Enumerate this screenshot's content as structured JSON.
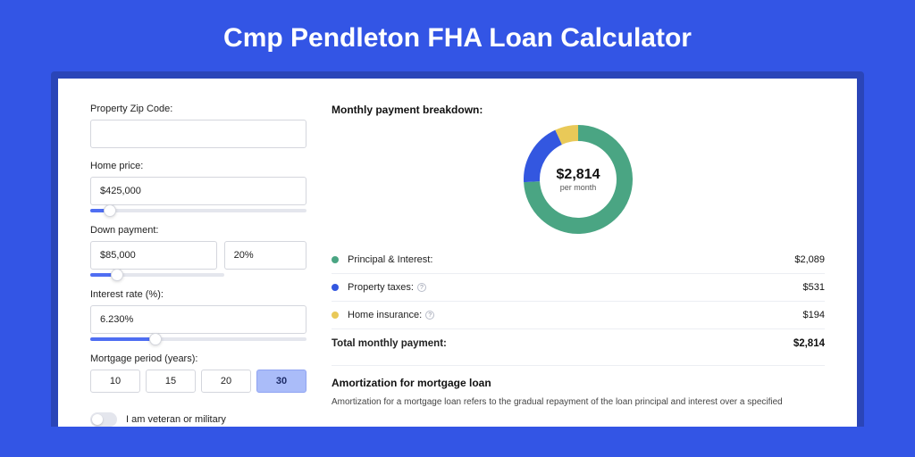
{
  "colors": {
    "page_bg": "#3355e5",
    "shadow": "#2a45b8",
    "card_bg": "#ffffff",
    "border": "#d4d6dd",
    "slider_fill": "#4f6ef2",
    "slider_track": "#e4e6ed",
    "period_active_bg": "#aabcf9",
    "text": "#222222"
  },
  "title": "Cmp Pendleton FHA Loan Calculator",
  "form": {
    "zip": {
      "label": "Property Zip Code:",
      "value": ""
    },
    "home_price": {
      "label": "Home price:",
      "value": "$425,000",
      "slider_pct": 9
    },
    "down_payment": {
      "label": "Down payment:",
      "value": "$85,000",
      "pct_value": "20%",
      "slider_pct": 20
    },
    "interest_rate": {
      "label": "Interest rate (%):",
      "value": "6.230%",
      "slider_pct": 30
    },
    "period": {
      "label": "Mortgage period (years):",
      "options": [
        "10",
        "15",
        "20",
        "30"
      ],
      "selected": "30"
    },
    "veteran": {
      "label": "I am veteran or military",
      "on": false
    }
  },
  "breakdown": {
    "title": "Monthly payment breakdown:",
    "center_amount": "$2,814",
    "center_sub": "per month",
    "donut": {
      "size": 122,
      "thickness": 18,
      "slices": [
        {
          "key": "principal_interest",
          "pct": 74.2,
          "color": "#4aa583"
        },
        {
          "key": "property_taxes",
          "pct": 18.9,
          "color": "#3357e0"
        },
        {
          "key": "home_insurance",
          "pct": 6.9,
          "color": "#e9c958"
        }
      ]
    },
    "rows": [
      {
        "dot": "#4aa583",
        "label": "Principal & Interest:",
        "info": false,
        "value": "$2,089"
      },
      {
        "dot": "#3357e0",
        "label": "Property taxes:",
        "info": true,
        "value": "$531"
      },
      {
        "dot": "#e9c958",
        "label": "Home insurance:",
        "info": true,
        "value": "$194"
      }
    ],
    "total": {
      "label": "Total monthly payment:",
      "value": "$2,814"
    }
  },
  "amortization": {
    "title": "Amortization for mortgage loan",
    "text": "Amortization for a mortgage loan refers to the gradual repayment of the loan principal and interest over a specified"
  }
}
